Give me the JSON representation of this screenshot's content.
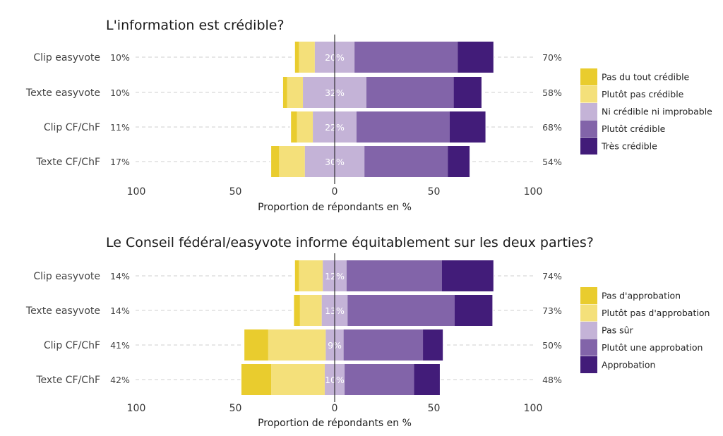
{
  "chart_data": [
    {
      "type": "bar",
      "orientation": "horizontal",
      "stacking": "diverging",
      "title": "L'information est crédible?",
      "xlabel": "Proportion de répondants en %",
      "xlim": [
        -100,
        100
      ],
      "x_ticks": [
        -100,
        -50,
        0,
        50,
        100
      ],
      "x_tick_labels": [
        "100",
        "50",
        "0",
        "50",
        "100"
      ],
      "grid": "dashed-horizontal",
      "legend_position": "right",
      "categories": [
        "Clip easyvote",
        "Texte easyvote",
        "Clip CF/ChF",
        "Texte CF/ChF"
      ],
      "negative_totals": [
        "10%",
        "10%",
        "11%",
        "17%"
      ],
      "neutral_labels": [
        "20%",
        "32%",
        "22%",
        "30%"
      ],
      "positive_totals": [
        "70%",
        "58%",
        "68%",
        "54%"
      ],
      "series": [
        {
          "name": "Pas du tout crédible",
          "values": [
            2,
            2,
            3,
            4
          ],
          "color": "#e9cc2e"
        },
        {
          "name": "Plutôt pas crédible",
          "values": [
            8,
            8,
            8,
            13
          ],
          "color": "#f4e07a"
        },
        {
          "name": "Ni crédible ni improbable",
          "values": [
            20,
            32,
            22,
            30
          ],
          "color": "#c4b3d7"
        },
        {
          "name": "Plutôt crédible",
          "values": [
            52,
            44,
            47,
            42
          ],
          "color": "#8264a9"
        },
        {
          "name": "Très crédible",
          "values": [
            18,
            14,
            18,
            11
          ],
          "color": "#421c79"
        }
      ]
    },
    {
      "type": "bar",
      "orientation": "horizontal",
      "stacking": "diverging",
      "title": "Le Conseil fédéral/easyvote informe équitablement sur les deux parties?",
      "xlabel": "Proportion de répondants en %",
      "xlim": [
        -100,
        100
      ],
      "x_ticks": [
        -100,
        -50,
        0,
        50,
        100
      ],
      "x_tick_labels": [
        "100",
        "50",
        "0",
        "50",
        "100"
      ],
      "grid": "dashed-horizontal",
      "legend_position": "right",
      "categories": [
        "Clip easyvote",
        "Texte easyvote",
        "Clip CF/ChF",
        "Texte CF/ChF"
      ],
      "negative_totals": [
        "14%",
        "14%",
        "41%",
        "42%"
      ],
      "neutral_labels": [
        "12%",
        "13%",
        "9%",
        "10%"
      ],
      "positive_totals": [
        "74%",
        "73%",
        "50%",
        "48%"
      ],
      "series": [
        {
          "name": "Pas d'approbation",
          "values": [
            2,
            3,
            12,
            15
          ],
          "color": "#e9cc2e"
        },
        {
          "name": "Plutôt pas d'approbation",
          "values": [
            12,
            11,
            29,
            27
          ],
          "color": "#f4e07a"
        },
        {
          "name": "Pas sûr",
          "values": [
            12,
            13,
            9,
            10
          ],
          "color": "#c4b3d7"
        },
        {
          "name": "Plutôt une approbation",
          "values": [
            48,
            54,
            40,
            35
          ],
          "color": "#8264a9"
        },
        {
          "name": "Approbation",
          "values": [
            26,
            19,
            10,
            13
          ],
          "color": "#421c79"
        }
      ]
    }
  ]
}
